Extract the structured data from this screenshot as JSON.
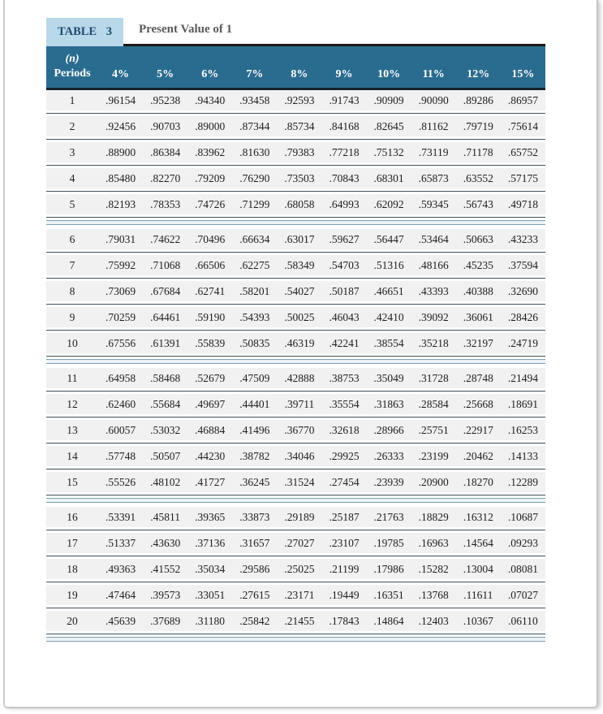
{
  "table": {
    "tab_label": "TABLE 3",
    "title": "Present Value of 1",
    "period_header": {
      "line1": "(n)",
      "line2": "Periods"
    },
    "rate_headers": [
      "4%",
      "5%",
      "6%",
      "7%",
      "8%",
      "9%",
      "10%",
      "11%",
      "12%",
      "15%"
    ],
    "groups": [
      {
        "rows": [
          {
            "period": "1",
            "values": [
              ".96154",
              ".95238",
              ".94340",
              ".93458",
              ".92593",
              ".91743",
              ".90909",
              ".90090",
              ".89286",
              ".86957"
            ]
          },
          {
            "period": "2",
            "values": [
              ".92456",
              ".90703",
              ".89000",
              ".87344",
              ".85734",
              ".84168",
              ".82645",
              ".81162",
              ".79719",
              ".75614"
            ]
          },
          {
            "period": "3",
            "values": [
              ".88900",
              ".86384",
              ".83962",
              ".81630",
              ".79383",
              ".77218",
              ".75132",
              ".73119",
              ".71178",
              ".65752"
            ]
          },
          {
            "period": "4",
            "values": [
              ".85480",
              ".82270",
              ".79209",
              ".76290",
              ".73503",
              ".70843",
              ".68301",
              ".65873",
              ".63552",
              ".57175"
            ]
          },
          {
            "period": "5",
            "values": [
              ".82193",
              ".78353",
              ".74726",
              ".71299",
              ".68058",
              ".64993",
              ".62092",
              ".59345",
              ".56743",
              ".49718"
            ]
          }
        ]
      },
      {
        "rows": [
          {
            "period": "6",
            "values": [
              ".79031",
              ".74622",
              ".70496",
              ".66634",
              ".63017",
              ".59627",
              ".56447",
              ".53464",
              ".50663",
              ".43233"
            ]
          },
          {
            "period": "7",
            "values": [
              ".75992",
              ".71068",
              ".66506",
              ".62275",
              ".58349",
              ".54703",
              ".51316",
              ".48166",
              ".45235",
              ".37594"
            ]
          },
          {
            "period": "8",
            "values": [
              ".73069",
              ".67684",
              ".62741",
              ".58201",
              ".54027",
              ".50187",
              ".46651",
              ".43393",
              ".40388",
              ".32690"
            ]
          },
          {
            "period": "9",
            "values": [
              ".70259",
              ".64461",
              ".59190",
              ".54393",
              ".50025",
              ".46043",
              ".42410",
              ".39092",
              ".36061",
              ".28426"
            ]
          },
          {
            "period": "10",
            "values": [
              ".67556",
              ".61391",
              ".55839",
              ".50835",
              ".46319",
              ".42241",
              ".38554",
              ".35218",
              ".32197",
              ".24719"
            ]
          }
        ]
      },
      {
        "rows": [
          {
            "period": "11",
            "values": [
              ".64958",
              ".58468",
              ".52679",
              ".47509",
              ".42888",
              ".38753",
              ".35049",
              ".31728",
              ".28748",
              ".21494"
            ]
          },
          {
            "period": "12",
            "values": [
              ".62460",
              ".55684",
              ".49697",
              ".44401",
              ".39711",
              ".35554",
              ".31863",
              ".28584",
              ".25668",
              ".18691"
            ]
          },
          {
            "period": "13",
            "values": [
              ".60057",
              ".53032",
              ".46884",
              ".41496",
              ".36770",
              ".32618",
              ".28966",
              ".25751",
              ".22917",
              ".16253"
            ]
          },
          {
            "period": "14",
            "values": [
              ".57748",
              ".50507",
              ".44230",
              ".38782",
              ".34046",
              ".29925",
              ".26333",
              ".23199",
              ".20462",
              ".14133"
            ]
          },
          {
            "period": "15",
            "values": [
              ".55526",
              ".48102",
              ".41727",
              ".36245",
              ".31524",
              ".27454",
              ".23939",
              ".20900",
              ".18270",
              ".12289"
            ]
          }
        ]
      },
      {
        "rows": [
          {
            "period": "16",
            "values": [
              ".53391",
              ".45811",
              ".39365",
              ".33873",
              ".29189",
              ".25187",
              ".21763",
              ".18829",
              ".16312",
              ".10687"
            ]
          },
          {
            "period": "17",
            "values": [
              ".51337",
              ".43630",
              ".37136",
              ".31657",
              ".27027",
              ".23107",
              ".19785",
              ".16963",
              ".14564",
              ".09293"
            ]
          },
          {
            "period": "18",
            "values": [
              ".49363",
              ".41552",
              ".35034",
              ".29586",
              ".25025",
              ".21199",
              ".17986",
              ".15282",
              ".13004",
              ".08081"
            ]
          },
          {
            "period": "19",
            "values": [
              ".47464",
              ".39573",
              ".33051",
              ".27615",
              ".23171",
              ".19449",
              ".16351",
              ".13768",
              ".11611",
              ".07027"
            ]
          },
          {
            "period": "20",
            "values": [
              ".45639",
              ".37689",
              ".31180",
              ".25842",
              ".21455",
              ".17843",
              ".14864",
              ".12403",
              ".10367",
              ".06110"
            ]
          }
        ]
      }
    ]
  },
  "colors": {
    "header_bg": "#2a6c90",
    "header_text": "#ffffff",
    "tab_bg": "#b9d8e8",
    "tab_text": "#1b4a70",
    "title_text": "#58595b",
    "row_bg": "#f1f1f1",
    "row_rule": "#3f4e58",
    "group_separator_line": "#7fa0b4",
    "group_separator_fill": "#eaf2f7",
    "header_border_top": "#191919",
    "header_border_bottom": "#142430",
    "page_border": "#c7c7c7"
  }
}
